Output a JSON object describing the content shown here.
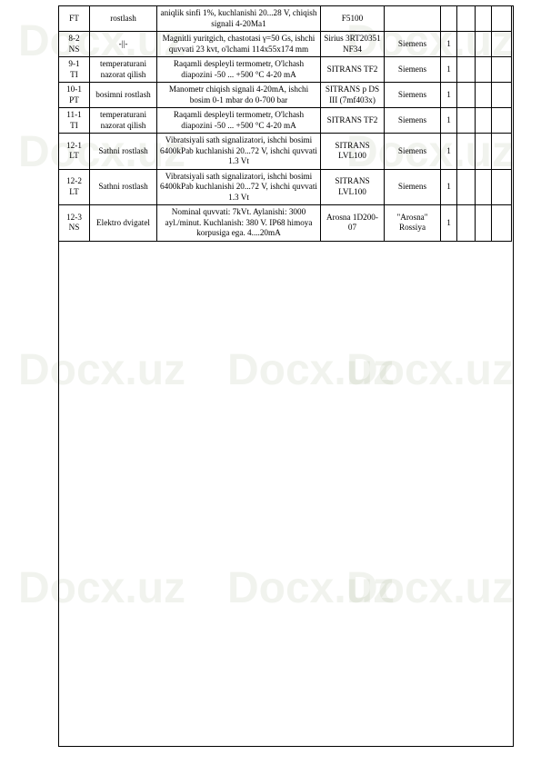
{
  "watermark_text": "Docx.uz",
  "table": {
    "rows": [
      {
        "c1": "FT",
        "c2": "rostlash",
        "c3": "aniqlik sinfi 1%, kuchlanishi 20...28 V, chiqish signali 4-20Ma1",
        "c4": "F5100",
        "c5": "",
        "c6": "",
        "c7": "",
        "c8": "",
        "c9": ""
      },
      {
        "c1": "8-2\nNS",
        "c2": "-||-",
        "c3": "Magnitli yuritgich, chastotasi γ=50 Gs, ishchi quvvati 23 kvt, o'lchami 114x55x174 mm",
        "c4": "Sirius 3RT20351 NF34",
        "c5": "Siemens",
        "c6": "1",
        "c7": "",
        "c8": "",
        "c9": ""
      },
      {
        "c1": "9-1\nTI",
        "c2": "temperaturani nazorat qilish",
        "c3": "Raqamli despleyli termometr, O'lchash diapozini -50 ... +500 °C 4-20 mA",
        "c4": "SITRANS TF2",
        "c5": "Siemens",
        "c6": "1",
        "c7": "",
        "c8": "",
        "c9": ""
      },
      {
        "c1": "10-1\nPT",
        "c2": "bosimni rostlash",
        "c3": "Manometr chiqish signali 4-20mA, ishchi bosim 0-1 mbar do 0-700 bar",
        "c4": "SITRANS p DS III (7mf403x)",
        "c5": "Siemens",
        "c6": "1",
        "c7": "",
        "c8": "",
        "c9": ""
      },
      {
        "c1": "11-1\nTI",
        "c2": "temperaturani nazorat qilish",
        "c3": "Raqamli despleyli termometr, O'lchash diapozini -50 ... +500 °C 4-20 mA",
        "c4": "SITRANS TF2",
        "c5": "Siemens",
        "c6": "1",
        "c7": "",
        "c8": "",
        "c9": ""
      },
      {
        "c1": "12-1\nLT",
        "c2": "Sathni rostlash",
        "c3": "Vibratsiyali sath    signalizatori, ishchi bosimi 6400kPab kuchlanishi 20...72 V, ishchi quvvati 1.3 Vt",
        "c4": "SITRANS LVL100",
        "c5": "Siemens",
        "c6": "1",
        "c7": "",
        "c8": "",
        "c9": ""
      },
      {
        "c1": "12-2\nLT",
        "c2": "Sathni rostlash",
        "c3": "Vibratsiyali sath signalizatori, ishchi bosimi 6400kPab kuchlanishi 20...72 V, ishchi quvvati 1.3 Vt",
        "c4": "SITRANS LVL100",
        "c5": "Siemens",
        "c6": "1",
        "c7": "",
        "c8": "",
        "c9": ""
      },
      {
        "c1": "12-3\nNS",
        "c2": "Elektro dvigatel",
        "c3": "Nominal quvvati: 7kVt. Aylanishi: 3000 ayl./minut. Kuchlanish: 380 V. IP68 himoya korpusiga ega. 4....20mA",
        "c4": "Arosna 1D200-07",
        "c5": "\"Arosna\" Rossiya",
        "c6": "1",
        "c7": "",
        "c8": "",
        "c9": ""
      }
    ]
  }
}
